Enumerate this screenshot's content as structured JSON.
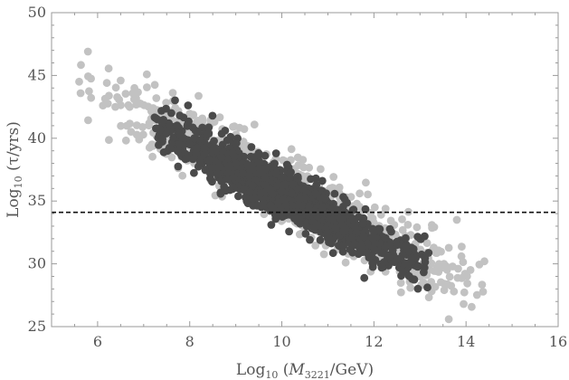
{
  "chart_data": {
    "type": "scatter",
    "title": "",
    "xlabel": "Log10 (M3221/GeV)",
    "ylabel": "Log10 (τ/yrs)",
    "xlabel_parts": {
      "pre": "Log",
      "pre_sub": "10",
      "mid": " (",
      "var": "M",
      "var_sub": "3221",
      "post": "/GeV)"
    },
    "ylabel_parts": {
      "pre": "Log",
      "pre_sub": "10",
      "post": " (τ/yrs)"
    },
    "xlim": [
      5,
      16
    ],
    "ylim": [
      25,
      50
    ],
    "x_ticks": [
      6,
      8,
      10,
      12,
      14,
      16
    ],
    "y_ticks": [
      25,
      30,
      35,
      40,
      45,
      50
    ],
    "x_tick_labels": [
      "6",
      "8",
      "10",
      "12",
      "14",
      "16"
    ],
    "y_tick_labels": [
      "25",
      "30",
      "35",
      "40",
      "45",
      "50"
    ],
    "grid": false,
    "reference_line": {
      "y": 34.1,
      "style": "dashed",
      "color": "#111111"
    },
    "series": [
      {
        "color": "#c2c2c2",
        "band": {
          "intercept": 55.0,
          "slope": -1.9,
          "half_width": 2.7,
          "x_range": [
            5.6,
            14.4
          ]
        },
        "point_count": 900,
        "values": [
          [
            5.6,
            44.5
          ],
          [
            6.2,
            44.4
          ],
          [
            6.5,
            44.6
          ],
          [
            6.8,
            44.0
          ],
          [
            14.4,
            30.2
          ],
          [
            13.9,
            30.6
          ],
          [
            13.3,
            31.3
          ],
          [
            12.9,
            31.6
          ],
          [
            12.8,
            32.3
          ],
          [
            13.8,
            33.5
          ]
        ]
      },
      {
        "color": "#4a4a4a",
        "band": {
          "intercept": 54.8,
          "slope": -1.92,
          "half_width": 1.9,
          "x_range": [
            7.2,
            13.2
          ]
        },
        "point_count": 1400,
        "values": [
          [
            7.3,
            41.5
          ],
          [
            7.6,
            42.0
          ],
          [
            8.0,
            39.5
          ],
          [
            9.0,
            38.0
          ],
          [
            10.0,
            35.8
          ],
          [
            11.0,
            34.0
          ],
          [
            12.0,
            32.5
          ],
          [
            12.5,
            31.5
          ],
          [
            13.0,
            32.0
          ],
          [
            13.1,
            32.2
          ]
        ]
      }
    ]
  }
}
